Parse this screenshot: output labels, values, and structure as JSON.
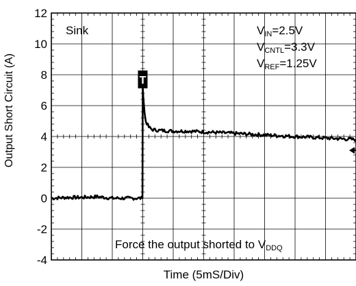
{
  "chart_data": {
    "type": "line",
    "title": "",
    "xlabel": "Time (5mS/Div)",
    "ylabel": "Output Short Circuit (A)",
    "x_divisions": 10,
    "x_unit_per_div": "5mS",
    "ylim": [
      -4,
      12
    ],
    "yticks": [
      "-4",
      "-2",
      "0",
      "2",
      "4",
      "6",
      "8",
      "10",
      "12"
    ],
    "grid": true,
    "series": [
      {
        "color": "#000000",
        "x_div": [
          0,
          0.5,
          1,
          1.5,
          2,
          2.5,
          2.99,
          3.0,
          3.02,
          3.06,
          3.1,
          3.2,
          3.3,
          3.5,
          4,
          4.5,
          5,
          5.5,
          6,
          6.5,
          7,
          7.5,
          8,
          8.5,
          9,
          9.5,
          10
        ],
        "y": [
          0,
          0.05,
          0.05,
          0.1,
          0,
          0,
          0,
          7.3,
          6.5,
          5.5,
          5.0,
          4.6,
          4.45,
          4.4,
          4.35,
          4.35,
          4.3,
          4.25,
          4.2,
          4.15,
          4.1,
          4.05,
          4.0,
          3.95,
          3.9,
          3.85,
          3.8
        ]
      }
    ],
    "trigger_marker": {
      "label": "T",
      "x_div": 3.0,
      "y": 7.7
    },
    "level_arrow": {
      "y": 3.1
    },
    "annotations": {
      "sink": "Sink",
      "vin": {
        "main": "V",
        "sub": "IN",
        "rest": "=2.5V"
      },
      "vcntl": {
        "main": "V",
        "sub": "CNTL",
        "rest": "=3.3V"
      },
      "vref": {
        "main": "V",
        "sub": "REF",
        "rest": "=1.25V"
      },
      "force": {
        "main": "Force the output shorted to V",
        "sub": "DDQ",
        "rest": ""
      }
    }
  }
}
